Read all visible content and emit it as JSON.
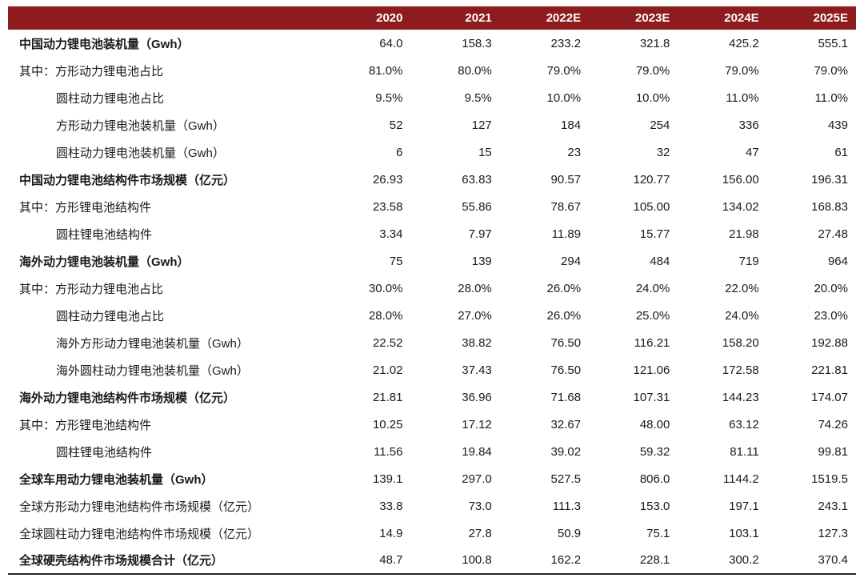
{
  "chart_data": {
    "type": "table",
    "title": "",
    "columns": [
      "2020",
      "2021",
      "2022E",
      "2023E",
      "2024E",
      "2025E"
    ],
    "rows": [
      {
        "label": "中国动力锂电池装机量（Gwh）",
        "bold": true,
        "indent": 0,
        "values": [
          "64.0",
          "158.3",
          "233.2",
          "321.8",
          "425.2",
          "555.1"
        ]
      },
      {
        "label": "其中：方形动力锂电池占比",
        "bold": false,
        "indent": 0,
        "values": [
          "81.0%",
          "80.0%",
          "79.0%",
          "79.0%",
          "79.0%",
          "79.0%"
        ]
      },
      {
        "label": "圆柱动力锂电池占比",
        "bold": false,
        "indent": 1,
        "values": [
          "9.5%",
          "9.5%",
          "10.0%",
          "10.0%",
          "11.0%",
          "11.0%"
        ]
      },
      {
        "label": "方形动力锂电池装机量（Gwh）",
        "bold": false,
        "indent": 1,
        "values": [
          "52",
          "127",
          "184",
          "254",
          "336",
          "439"
        ]
      },
      {
        "label": "圆柱动力锂电池装机量（Gwh）",
        "bold": false,
        "indent": 1,
        "values": [
          "6",
          "15",
          "23",
          "32",
          "47",
          "61"
        ]
      },
      {
        "label": "中国动力锂电池结构件市场规模（亿元）",
        "bold": true,
        "indent": 0,
        "values": [
          "26.93",
          "63.83",
          "90.57",
          "120.77",
          "156.00",
          "196.31"
        ]
      },
      {
        "label": "其中：方形锂电池结构件",
        "bold": false,
        "indent": 0,
        "values": [
          "23.58",
          "55.86",
          "78.67",
          "105.00",
          "134.02",
          "168.83"
        ]
      },
      {
        "label": "圆柱锂电池结构件",
        "bold": false,
        "indent": 1,
        "values": [
          "3.34",
          "7.97",
          "11.89",
          "15.77",
          "21.98",
          "27.48"
        ]
      },
      {
        "label": "海外动力锂电池装机量（Gwh）",
        "bold": true,
        "indent": 0,
        "values": [
          "75",
          "139",
          "294",
          "484",
          "719",
          "964"
        ]
      },
      {
        "label": "其中：方形动力锂电池占比",
        "bold": false,
        "indent": 0,
        "values": [
          "30.0%",
          "28.0%",
          "26.0%",
          "24.0%",
          "22.0%",
          "20.0%"
        ]
      },
      {
        "label": "圆柱动力锂电池占比",
        "bold": false,
        "indent": 1,
        "values": [
          "28.0%",
          "27.0%",
          "26.0%",
          "25.0%",
          "24.0%",
          "23.0%"
        ]
      },
      {
        "label": "海外方形动力锂电池装机量（Gwh）",
        "bold": false,
        "indent": 1,
        "values": [
          "22.52",
          "38.82",
          "76.50",
          "116.21",
          "158.20",
          "192.88"
        ]
      },
      {
        "label": "海外圆柱动力锂电池装机量（Gwh）",
        "bold": false,
        "indent": 1,
        "values": [
          "21.02",
          "37.43",
          "76.50",
          "121.06",
          "172.58",
          "221.81"
        ]
      },
      {
        "label": "海外动力锂电池结构件市场规模（亿元）",
        "bold": true,
        "indent": 0,
        "values": [
          "21.81",
          "36.96",
          "71.68",
          "107.31",
          "144.23",
          "174.07"
        ]
      },
      {
        "label": "其中：方形锂电池结构件",
        "bold": false,
        "indent": 0,
        "values": [
          "10.25",
          "17.12",
          "32.67",
          "48.00",
          "63.12",
          "74.26"
        ]
      },
      {
        "label": "圆柱锂电池结构件",
        "bold": false,
        "indent": 1,
        "values": [
          "11.56",
          "19.84",
          "39.02",
          "59.32",
          "81.11",
          "99.81"
        ]
      },
      {
        "label": "全球车用动力锂电池装机量（Gwh）",
        "bold": true,
        "indent": 0,
        "values": [
          "139.1",
          "297.0",
          "527.5",
          "806.0",
          "1144.2",
          "1519.5"
        ]
      },
      {
        "label": "全球方形动力锂电池结构件市场规模（亿元）",
        "bold": false,
        "indent": 0,
        "values": [
          "33.8",
          "73.0",
          "111.3",
          "153.0",
          "197.1",
          "243.1"
        ]
      },
      {
        "label": "全球圆柱动力锂电池结构件市场规模（亿元）",
        "bold": false,
        "indent": 0,
        "values": [
          "14.9",
          "27.8",
          "50.9",
          "75.1",
          "103.1",
          "127.3"
        ]
      },
      {
        "label": "全球硬壳结构件市场规模合计（亿元）",
        "bold": true,
        "indent": 0,
        "values": [
          "48.7",
          "100.8",
          "162.2",
          "228.1",
          "300.2",
          "370.4"
        ]
      }
    ]
  },
  "colors": {
    "header_bg": "#8E1B1E",
    "header_text": "#FFFFFF",
    "body_text": "#1A1A1A",
    "bottom_border": "#262626"
  }
}
